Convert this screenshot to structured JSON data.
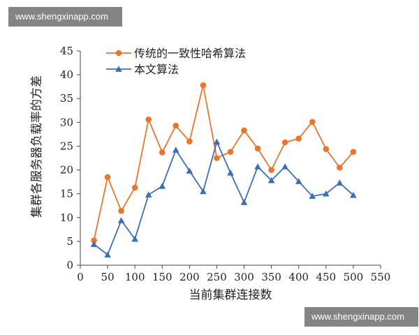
{
  "watermark_top": "www.shengxinapp.com",
  "watermark_bottom": "www.shengxinapp.com",
  "chart_data": {
    "type": "line",
    "title": "",
    "xlabel": "当前集群连接数",
    "ylabel": "集群各服务器负载率的方差",
    "xlim": [
      0,
      550
    ],
    "ylim": [
      0,
      45
    ],
    "xticks": [
      0,
      50,
      100,
      150,
      200,
      250,
      300,
      350,
      400,
      450,
      500,
      550
    ],
    "yticks": [
      0,
      5,
      10,
      15,
      20,
      25,
      30,
      35,
      40,
      45
    ],
    "legend_position": "top-left",
    "grid": false,
    "x": [
      25,
      50,
      75,
      100,
      125,
      150,
      175,
      200,
      225,
      250,
      275,
      300,
      325,
      350,
      375,
      400,
      425,
      450,
      475,
      500
    ],
    "series": [
      {
        "name": "传统的一致性哈希算法",
        "color": "#e8762d",
        "marker": "circle",
        "values": [
          5.2,
          18.5,
          11.4,
          16.3,
          30.6,
          23.7,
          29.3,
          26.0,
          37.8,
          22.5,
          23.8,
          28.3,
          24.5,
          20.0,
          25.8,
          26.6,
          30.1,
          24.4,
          20.5,
          23.8
        ]
      },
      {
        "name": "本文算法",
        "color": "#3d6db5",
        "marker": "triangle",
        "values": [
          4.4,
          2.2,
          9.4,
          5.5,
          14.8,
          16.6,
          24.2,
          19.8,
          15.5,
          25.9,
          19.4,
          13.2,
          20.7,
          17.8,
          20.7,
          17.6,
          14.5,
          15.0,
          17.3,
          14.7
        ]
      }
    ]
  }
}
